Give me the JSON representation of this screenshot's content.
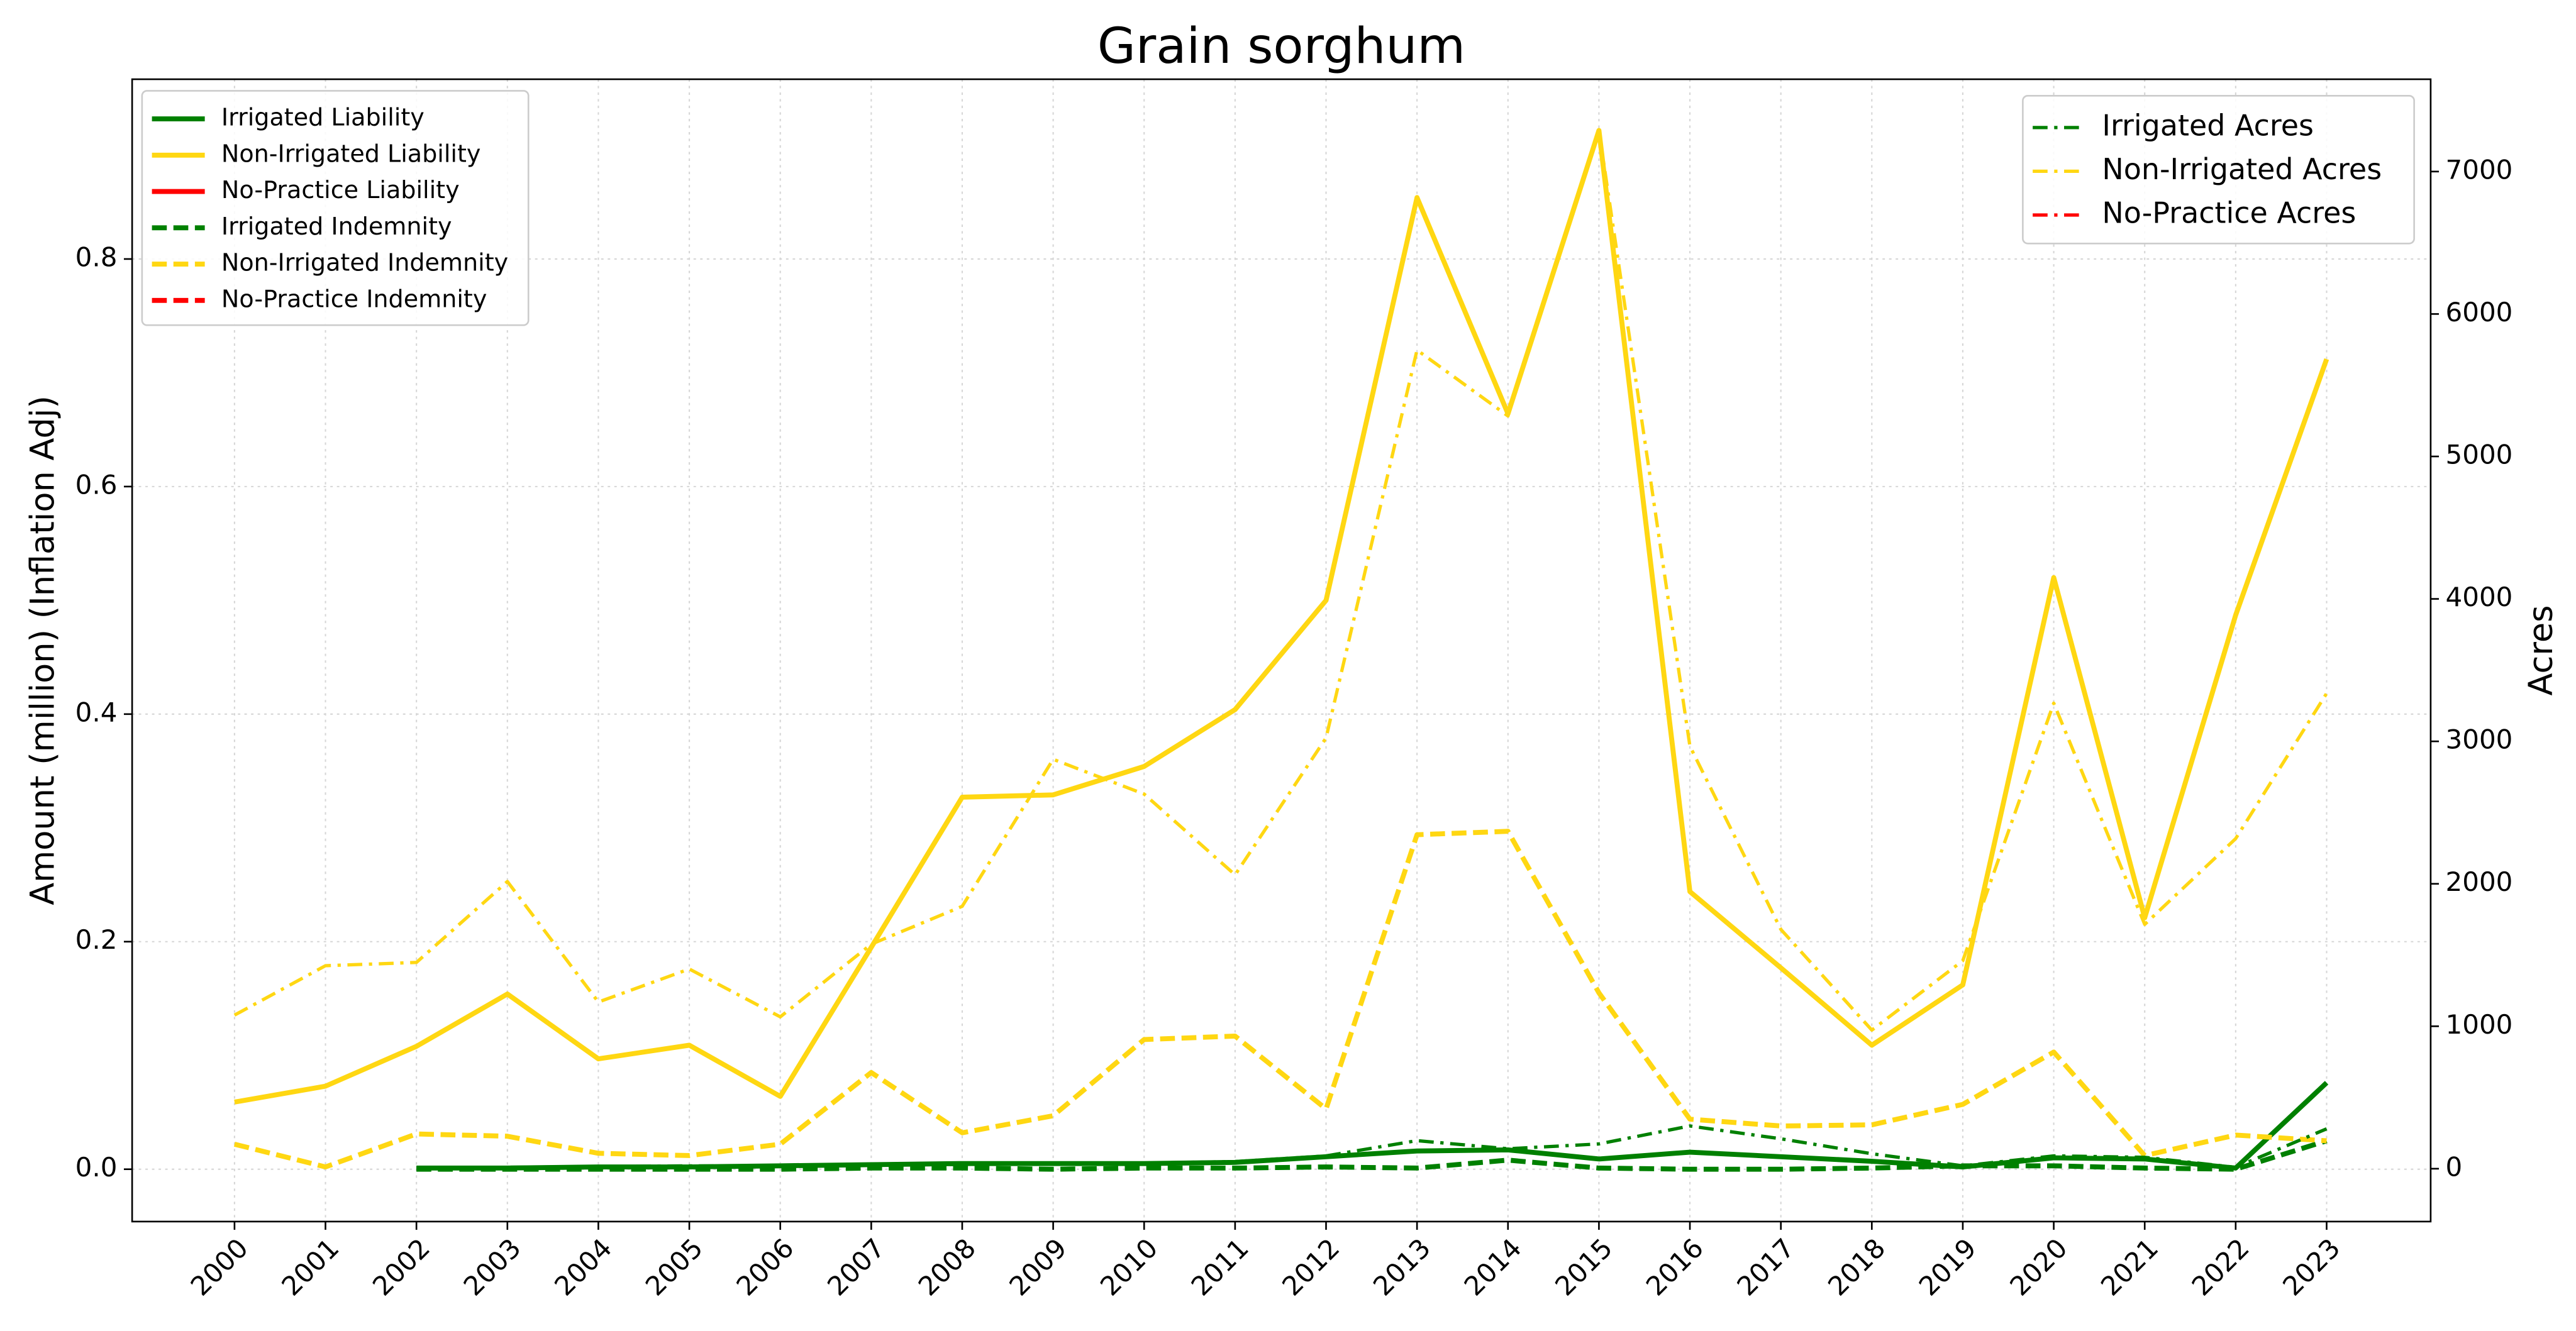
{
  "chart_data": {
    "type": "line",
    "title": "Grain sorghum",
    "y_label": "Amount (million) (Inflation Adj)",
    "y2_label": "Acres",
    "categories": [
      "2000",
      "2001",
      "2002",
      "2003",
      "2004",
      "2005",
      "2006",
      "2007",
      "2008",
      "2009",
      "2010",
      "2011",
      "2012",
      "2013",
      "2014",
      "2015",
      "2016",
      "2017",
      "2018",
      "2019",
      "2020",
      "2021",
      "2022",
      "2023"
    ],
    "ylim": [
      -0.046,
      0.958
    ],
    "yticks": [
      {
        "value": 0,
        "label": "0.0"
      },
      0.2,
      0.4,
      0.6,
      0.8
    ],
    "y2lim": [
      -371,
      7648
    ],
    "y2ticks": [
      0,
      1000,
      2000,
      3000,
      4000,
      5000,
      6000,
      7000
    ],
    "grid": true,
    "legend": "upper left",
    "legend2": "upper right",
    "series": [
      {
        "name": "Irrigated Liability",
        "color": "#008000",
        "linestyle": "solid",
        "values": [
          null,
          null,
          0.001,
          0.001,
          0.002,
          0.002,
          0.003,
          0.004,
          0.005,
          0.005,
          0.005,
          0.006,
          0.011,
          0.016,
          0.017,
          0.009,
          0.015,
          0.011,
          0.007,
          0.002,
          0.01,
          0.009,
          0.001,
          0.076
        ]
      },
      {
        "name": "Non-Irrigated Liability",
        "color": "#ffd712",
        "linestyle": "solid",
        "values": [
          0.059,
          0.073,
          0.108,
          0.154,
          0.097,
          0.109,
          0.064,
          0.195,
          0.327,
          0.329,
          0.354,
          0.404,
          0.5,
          0.854,
          0.664,
          0.913,
          0.244,
          0.177,
          0.109,
          0.162,
          0.52,
          0.221,
          0.487,
          0.712
        ]
      },
      {
        "name": "No-Practice Liability",
        "color": "#ff0000",
        "linestyle": "solid",
        "values": [
          null,
          null,
          null,
          null,
          null,
          null,
          null,
          null,
          null,
          null,
          null,
          null,
          null,
          null,
          null,
          null,
          null,
          null,
          null,
          null,
          null,
          null,
          null,
          null
        ]
      },
      {
        "name": "Irrigated Indemnity",
        "color": "#008000",
        "linestyle": "dashed",
        "values": [
          null,
          null,
          0,
          0,
          0,
          0,
          0,
          0.001,
          0.001,
          0,
          0.001,
          0.001,
          0.002,
          0.001,
          0.008,
          0.001,
          0,
          0,
          0.001,
          0.003,
          0.003,
          0.001,
          0,
          0.025
        ]
      },
      {
        "name": "Non-Irrigated Indemnity",
        "color": "#ffd712",
        "linestyle": "dashed",
        "values": [
          0.022,
          0.002,
          0.031,
          0.029,
          0.014,
          0.012,
          0.022,
          0.085,
          0.032,
          0.047,
          0.114,
          0.117,
          0.053,
          0.294,
          0.297,
          0.155,
          0.044,
          0.038,
          0.039,
          0.057,
          0.103,
          0.012,
          0.03,
          0.025
        ]
      },
      {
        "name": "No-Practice Indemnity",
        "color": "#ff0000",
        "linestyle": "dashed",
        "values": [
          null,
          null,
          null,
          null,
          null,
          null,
          null,
          null,
          null,
          null,
          null,
          null,
          null,
          null,
          null,
          null,
          null,
          null,
          null,
          null,
          null,
          null,
          null,
          null
        ]
      },
      {
        "name": "Irrigated Acres",
        "color": "#008000",
        "linestyle": "dashdot",
        "axis": "y2",
        "values": [
          null,
          null,
          5,
          10,
          15,
          20,
          20,
          25,
          30,
          40,
          40,
          50,
          90,
          197,
          140,
          174,
          300,
          210,
          105,
          20,
          90,
          80,
          10,
          280
        ]
      },
      {
        "name": "Non-Irrigated Acres",
        "color": "#ffd712",
        "linestyle": "dashdot",
        "axis": "y2",
        "values": [
          1078,
          1425,
          1448,
          2016,
          1170,
          1402,
          1066,
          1576,
          1842,
          2874,
          2630,
          2063,
          3024,
          5747,
          5284,
          7289,
          2966,
          1680,
          973,
          1460,
          3268,
          1715,
          2317,
          3337
        ]
      },
      {
        "name": "No-Practice Acres",
        "color": "#ff0000",
        "linestyle": "dashdot",
        "axis": "y2",
        "values": [
          null,
          null,
          null,
          null,
          null,
          null,
          null,
          null,
          null,
          null,
          null,
          null,
          null,
          null,
          null,
          null,
          null,
          null,
          null,
          null,
          null,
          null,
          null,
          null
        ]
      }
    ]
  }
}
